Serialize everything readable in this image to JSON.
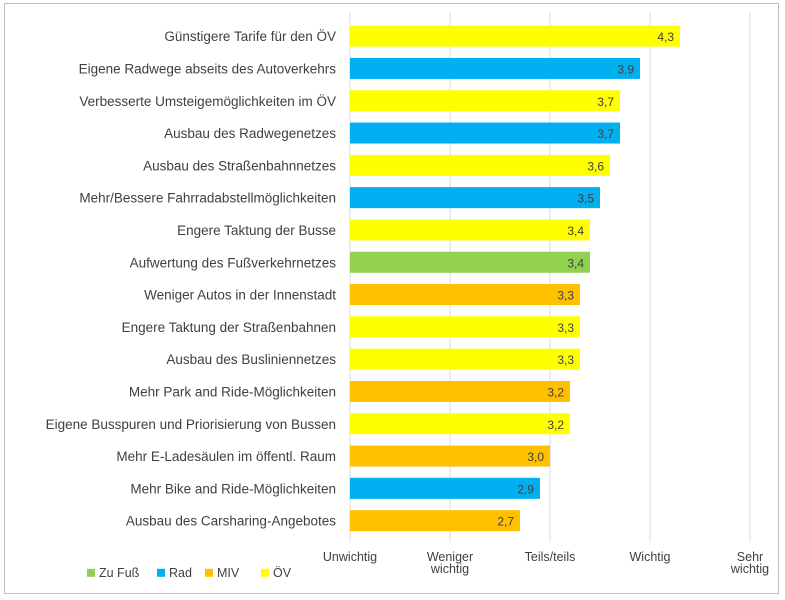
{
  "colors": {
    "Zu Fuß": "#92d050",
    "Rad": "#00b0f0",
    "MIV": "#ffc000",
    "ÖV": "#ffff00"
  },
  "chart_data": {
    "type": "bar",
    "orientation": "horizontal",
    "categories": [
      "Günstigere Tarife für den ÖV",
      "Eigene Radwege abseits des Autoverkehrs",
      "Verbesserte Umsteigemöglichkeiten im ÖV",
      "Ausbau des Radwegenetzes",
      "Ausbau des Straßenbahnnetzes",
      "Mehr/Bessere Fahrradabstellmöglichkeiten",
      "Engere Taktung der Busse",
      "Aufwertung des Fußverkehrnetzes",
      "Weniger Autos in der Innenstadt",
      "Engere Taktung der Straßenbahnen",
      "Ausbau des Busliniennetzes",
      "Mehr Park and Ride-Möglichkeiten",
      "Eigene Busspuren und Priorisierung von Bussen",
      "Mehr E-Ladesäulen im öffentl. Raum",
      "Mehr Bike and Ride-Möglichkeiten",
      "Ausbau des Carsharing-Angebotes"
    ],
    "values": [
      4.3,
      3.9,
      3.7,
      3.7,
      3.6,
      3.5,
      3.4,
      3.4,
      3.3,
      3.3,
      3.3,
      3.2,
      3.2,
      3.0,
      2.9,
      2.7
    ],
    "value_labels": [
      "4,3",
      "3,9",
      "3,7",
      "3,7",
      "3,6",
      "3,5",
      "3,4",
      "3,4",
      "3,3",
      "3,3",
      "3,3",
      "3,2",
      "3,2",
      "3,0",
      "2,9",
      "2,7"
    ],
    "groups": [
      "ÖV",
      "Rad",
      "ÖV",
      "Rad",
      "ÖV",
      "Rad",
      "ÖV",
      "Zu Fuß",
      "MIV",
      "ÖV",
      "ÖV",
      "MIV",
      "ÖV",
      "MIV",
      "Rad",
      "MIV"
    ],
    "xlim": [
      1,
      5
    ],
    "x_ticks": [
      {
        "value": 1,
        "lines": [
          "Unwichtig"
        ]
      },
      {
        "value": 2,
        "lines": [
          "Weniger",
          "wichtig"
        ]
      },
      {
        "value": 3,
        "lines": [
          "Teils/teils"
        ]
      },
      {
        "value": 4,
        "lines": [
          "Wichtig"
        ]
      },
      {
        "value": 5,
        "lines": [
          "Sehr",
          "wichtig"
        ]
      }
    ],
    "legend": {
      "position": "bottom-left",
      "entries": [
        "Zu Fuß",
        "Rad",
        "MIV",
        "ÖV"
      ]
    },
    "grid": "vertical"
  }
}
